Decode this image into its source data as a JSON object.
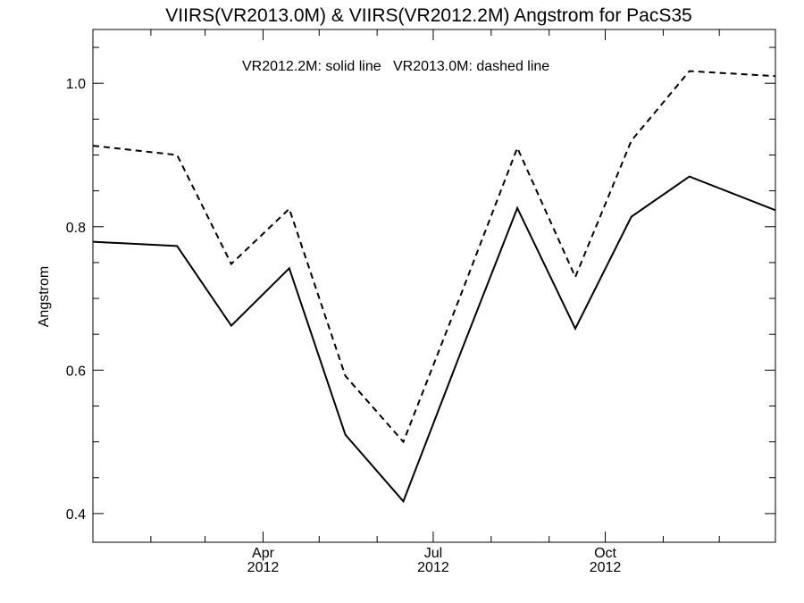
{
  "chart_data": {
    "type": "line",
    "title": "VIIRS(VR2013.0M) & VIIRS(VR2012.2M)  Angstrom for PacS35",
    "ylabel": "Angstrom",
    "xlabel": "",
    "annotation": "VR2012.2M: solid line   VR2013.0M: dashed line",
    "ylim": [
      0.36,
      1.075
    ],
    "y_major_ticks": [
      0.4,
      0.6,
      0.8,
      1.0
    ],
    "y_tick_labels": [
      "0.4",
      "0.6",
      "0.8",
      "1.0"
    ],
    "y_minor_step": 0.05,
    "x_domain": [
      "2012-01-01",
      "2012-12-31"
    ],
    "x_minor_ticks": [
      "2012-02-01",
      "2012-03-01",
      "2012-04-01",
      "2012-05-01",
      "2012-06-01",
      "2012-07-01",
      "2012-08-01",
      "2012-09-01",
      "2012-10-01",
      "2012-11-01",
      "2012-12-01"
    ],
    "x_major_ticks": [
      {
        "date": "2012-04-01",
        "month": "Apr",
        "year": "2012"
      },
      {
        "date": "2012-07-01",
        "month": "Jul",
        "year": "2012"
      },
      {
        "date": "2012-10-01",
        "month": "Oct",
        "year": "2012"
      }
    ],
    "x": [
      "2012-01-01",
      "2012-02-15",
      "2012-03-15",
      "2012-04-15",
      "2012-05-15",
      "2012-06-15",
      "2012-07-15",
      "2012-08-15",
      "2012-09-15",
      "2012-10-15",
      "2012-11-15",
      "2012-12-31"
    ],
    "series": [
      {
        "style": "solid",
        "values": [
          0.779,
          0.773,
          0.662,
          0.742,
          0.51,
          0.417,
          0.62,
          0.826,
          0.658,
          0.814,
          0.87,
          0.823
        ]
      },
      {
        "style": "dashed",
        "values": [
          0.913,
          0.9,
          0.748,
          0.825,
          0.592,
          0.5,
          0.7,
          0.91,
          0.73,
          0.92,
          1.017,
          1.01
        ]
      }
    ],
    "grid": false
  }
}
